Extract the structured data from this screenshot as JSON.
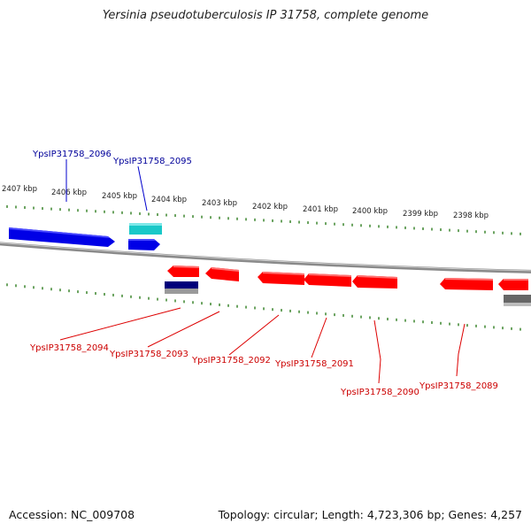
{
  "title": "Yersinia pseudotuberculosis IP 31758, complete genome",
  "footer": {
    "accession": "Accession: NC_009708",
    "summary": "Topology: circular; Length: 4,723,306 bp; Genes: 4,257"
  },
  "colors": {
    "plus_gene": "#0000e6",
    "plus_gene_alt": "#19c8c8",
    "minus_gene": "#ff0000",
    "minus_gene_alt": "#00007a",
    "gray_gene": "#666666",
    "tick": "#2e7d1e",
    "backbone": "#888888",
    "plus_label": "#00009a",
    "minus_label": "#cc0000"
  },
  "scale": {
    "ticks": [
      {
        "label": "2407 kbp"
      },
      {
        "label": "2406 kbp"
      },
      {
        "label": "2405 kbp"
      },
      {
        "label": "2404 kbp"
      },
      {
        "label": "2403 kbp"
      },
      {
        "label": "2402 kbp"
      },
      {
        "label": "2401 kbp"
      },
      {
        "label": "2400 kbp"
      },
      {
        "label": "2399 kbp"
      },
      {
        "label": "2398 kbp"
      }
    ]
  },
  "genes_plus": [
    {
      "label": "YpsIP31758_2096"
    },
    {
      "label": "YpsIP31758_2095"
    }
  ],
  "genes_minus": [
    {
      "label": "YpsIP31758_2094"
    },
    {
      "label": "YpsIP31758_2093"
    },
    {
      "label": "YpsIP31758_2092"
    },
    {
      "label": "YpsIP31758_2091"
    },
    {
      "label": "YpsIP31758_2090"
    },
    {
      "label": "YpsIP31758_2089"
    }
  ]
}
